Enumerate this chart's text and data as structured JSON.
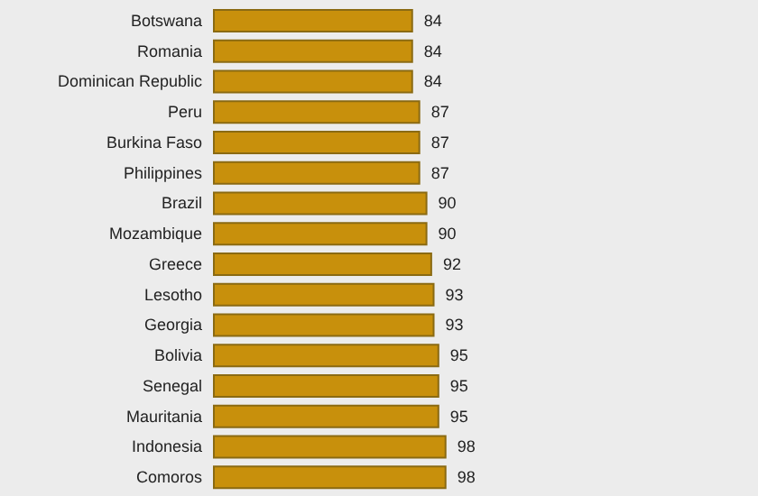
{
  "chart_data": {
    "type": "bar",
    "orientation": "horizontal",
    "categories": [
      "Botswana",
      "Romania",
      "Dominican Republic",
      "Peru",
      "Burkina Faso",
      "Philippines",
      "Brazil",
      "Mozambique",
      "Greece",
      "Lesotho",
      "Georgia",
      "Bolivia",
      "Senegal",
      "Mauritania",
      "Indonesia",
      "Comoros"
    ],
    "values": [
      84,
      84,
      84,
      87,
      87,
      87,
      90,
      90,
      92,
      93,
      93,
      95,
      95,
      95,
      98,
      98
    ],
    "color": "#c8900c",
    "data_labels": true
  }
}
